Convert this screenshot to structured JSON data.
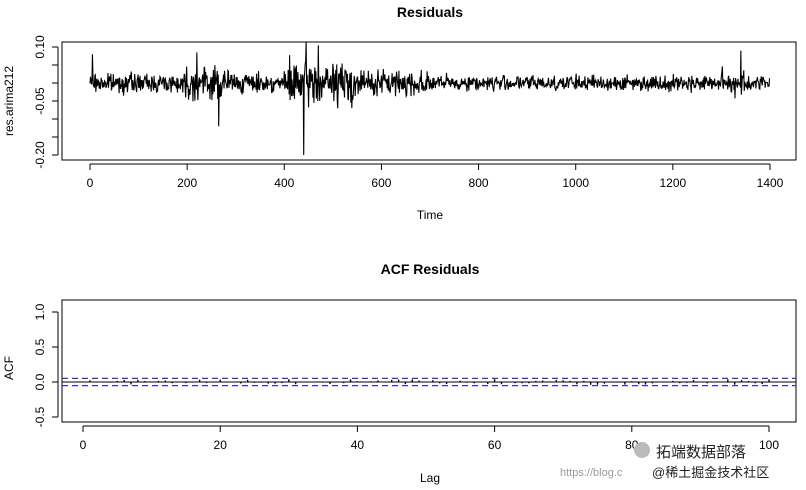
{
  "chart_data": [
    {
      "type": "line",
      "title": "Residuals",
      "xlabel": "Time",
      "ylabel": "res.arima212",
      "xlim": [
        0,
        1400
      ],
      "ylim": [
        -0.2,
        0.1
      ],
      "xticks": [
        0,
        200,
        400,
        600,
        800,
        1000,
        1200,
        1400
      ],
      "yticks": [
        "-0.20",
        "-0.05",
        "0.10"
      ],
      "n": 1400,
      "value_range": [
        -0.2,
        0.12
      ],
      "spikes": [
        {
          "x": 5,
          "y": 0.08
        },
        {
          "x": 220,
          "y": 0.085
        },
        {
          "x": 265,
          "y": -0.12
        },
        {
          "x": 440,
          "y": -0.2
        },
        {
          "x": 445,
          "y": 0.115
        },
        {
          "x": 470,
          "y": 0.105
        },
        {
          "x": 1340,
          "y": 0.09
        }
      ],
      "grid": false
    },
    {
      "type": "bar",
      "title": "ACF Residuals",
      "xlabel": "Lag",
      "ylabel": "ACF",
      "xlim": [
        0,
        100
      ],
      "ylim": [
        -0.5,
        1.0
      ],
      "xticks": [
        0,
        20,
        40,
        60,
        80,
        100
      ],
      "yticks": [
        "-0.5",
        "0.0",
        "0.5",
        "1.0"
      ],
      "confidence_band": [
        -0.052,
        0.052
      ],
      "band_color": "#3333cc",
      "acf_range": [
        -0.04,
        0.04
      ],
      "grid": false
    }
  ],
  "watermark": {
    "brand": "拓端数据部落",
    "url": "https://blog.c",
    "site": "@稀土掘金技术社区"
  }
}
